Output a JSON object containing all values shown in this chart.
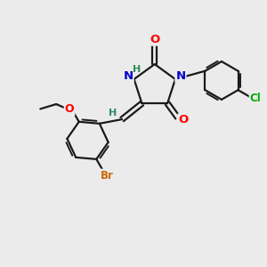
{
  "background_color": "#ebebeb",
  "bond_color": "#1a1a1a",
  "atom_colors": {
    "O": "#ff0000",
    "N": "#0000cc",
    "Br": "#cc6600",
    "Cl": "#00aa00",
    "H_label": "#2e8b57",
    "C": "#1a1a1a"
  },
  "figsize": [
    3.0,
    3.0
  ],
  "dpi": 100,
  "xlim": [
    0,
    10
  ],
  "ylim": [
    0,
    10
  ]
}
